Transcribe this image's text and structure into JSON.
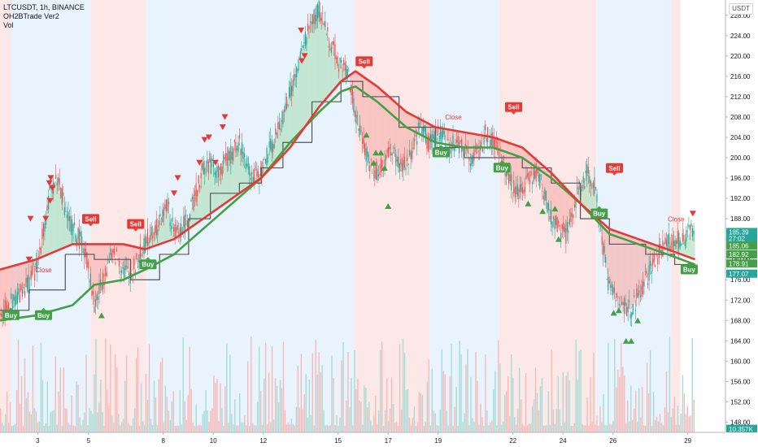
{
  "legend": {
    "symbol": "LTCUSDT, 1h, BINANCE",
    "indicator": "OH2BTrade Ver2",
    "volume": "Vol"
  },
  "currency": "USDT",
  "colors": {
    "buy": "#43a047",
    "sell": "#e53935",
    "up": "#26a69a",
    "down": "#ef5350",
    "band_red": "#fde8e8",
    "band_blue": "#e8f3fd",
    "ma_red": "#e53935",
    "ma_green": "#43a047",
    "stair": "#555555"
  },
  "chart_data": {
    "type": "candlestick",
    "ylim": [
      146,
      231
    ],
    "xlim": [
      0,
      100
    ],
    "y_ticks": [
      "228.00",
      "224.00",
      "220.00",
      "216.00",
      "212.00",
      "208.00",
      "204.00",
      "200.00",
      "196.00",
      "192.00",
      "188.00",
      "184.00",
      "180.00",
      "176.00",
      "172.00",
      "168.00",
      "164.00",
      "160.00",
      "156.00",
      "152.00",
      "148.00"
    ],
    "x_ticks": [
      {
        "label": "3",
        "x": 5.2
      },
      {
        "label": "5",
        "x": 12.2
      },
      {
        "label": "8",
        "x": 22.5
      },
      {
        "label": "10",
        "x": 29.4
      },
      {
        "label": "12",
        "x": 36.3
      },
      {
        "label": "15",
        "x": 46.6
      },
      {
        "label": "17",
        "x": 53.5
      },
      {
        "label": "19",
        "x": 60.4
      },
      {
        "label": "22",
        "x": 70.7
      },
      {
        "label": "24",
        "x": 77.6
      },
      {
        "label": "26",
        "x": 84.5
      },
      {
        "label": "29",
        "x": 94.8
      }
    ],
    "bands": [
      {
        "from": 0,
        "to": 1.5,
        "color": "red"
      },
      {
        "from": 1.5,
        "to": 12.5,
        "color": "blue"
      },
      {
        "from": 12.5,
        "to": 20.2,
        "color": "red"
      },
      {
        "from": 20.2,
        "to": 48.8,
        "color": "blue"
      },
      {
        "from": 48.8,
        "to": 59.2,
        "color": "red"
      },
      {
        "from": 59.2,
        "to": 68.8,
        "color": "blue"
      },
      {
        "from": 68.8,
        "to": 82.2,
        "color": "red"
      },
      {
        "from": 82.2,
        "to": 92.5,
        "color": "blue"
      },
      {
        "from": 92.5,
        "to": 93.8,
        "color": "red"
      }
    ],
    "price_path": [
      [
        0,
        169
      ],
      [
        2,
        172
      ],
      [
        4,
        176
      ],
      [
        5,
        178
      ],
      [
        6,
        186
      ],
      [
        7,
        194
      ],
      [
        8,
        196
      ],
      [
        9,
        190
      ],
      [
        10,
        186
      ],
      [
        11,
        184
      ],
      [
        12,
        180
      ],
      [
        13,
        171
      ],
      [
        14,
        175
      ],
      [
        15,
        180
      ],
      [
        16,
        181
      ],
      [
        17,
        178
      ],
      [
        18,
        177
      ],
      [
        19,
        180
      ],
      [
        20,
        183
      ],
      [
        21,
        186
      ],
      [
        22,
        187
      ],
      [
        23,
        191
      ],
      [
        24,
        185
      ],
      [
        25,
        186
      ],
      [
        26,
        188
      ],
      [
        27,
        193
      ],
      [
        28,
        198
      ],
      [
        29,
        199
      ],
      [
        30,
        197
      ],
      [
        31,
        199
      ],
      [
        32,
        201
      ],
      [
        33,
        203
      ],
      [
        34,
        199
      ],
      [
        35,
        196
      ],
      [
        36,
        197
      ],
      [
        37,
        201
      ],
      [
        38,
        204
      ],
      [
        39,
        208
      ],
      [
        40,
        213
      ],
      [
        41,
        217
      ],
      [
        42,
        223
      ],
      [
        43,
        227
      ],
      [
        44,
        229
      ],
      [
        45,
        225
      ],
      [
        46,
        221
      ],
      [
        47,
        218
      ],
      [
        48,
        217
      ],
      [
        49,
        208
      ],
      [
        50,
        203
      ],
      [
        51,
        199
      ],
      [
        52,
        197
      ],
      [
        53,
        199
      ],
      [
        54,
        202
      ],
      [
        55,
        198
      ],
      [
        56,
        199
      ],
      [
        57,
        201
      ],
      [
        58,
        207
      ],
      [
        59,
        203
      ],
      [
        60,
        204
      ],
      [
        61,
        205
      ],
      [
        62,
        202
      ],
      [
        63,
        203
      ],
      [
        64,
        202
      ],
      [
        65,
        200
      ],
      [
        66,
        201
      ],
      [
        67,
        205
      ],
      [
        68,
        203
      ],
      [
        69,
        200
      ],
      [
        70,
        197
      ],
      [
        71,
        194
      ],
      [
        72,
        193
      ],
      [
        73,
        196
      ],
      [
        74,
        197
      ],
      [
        75,
        193
      ],
      [
        76,
        188
      ],
      [
        77,
        186
      ],
      [
        78,
        185
      ],
      [
        79,
        190
      ],
      [
        80,
        194
      ],
      [
        81,
        197
      ],
      [
        82,
        194
      ],
      [
        83,
        184
      ],
      [
        84,
        174
      ],
      [
        85,
        173
      ],
      [
        86,
        171
      ],
      [
        87,
        170
      ],
      [
        88,
        173
      ],
      [
        89,
        176
      ],
      [
        90,
        179
      ],
      [
        91,
        182
      ],
      [
        92,
        183
      ],
      [
        93,
        184
      ],
      [
        94,
        183
      ],
      [
        95,
        185
      ],
      [
        95.8,
        186
      ]
    ],
    "ma_red": [
      [
        0,
        178
      ],
      [
        5,
        180
      ],
      [
        10,
        183
      ],
      [
        13,
        183
      ],
      [
        17,
        183
      ],
      [
        20,
        182
      ],
      [
        24,
        184
      ],
      [
        28,
        188
      ],
      [
        32,
        192
      ],
      [
        36,
        196
      ],
      [
        40,
        202
      ],
      [
        44,
        210
      ],
      [
        47,
        215
      ],
      [
        49,
        217
      ],
      [
        52,
        214
      ],
      [
        56,
        209
      ],
      [
        60,
        206
      ],
      [
        64,
        205
      ],
      [
        68,
        204
      ],
      [
        72,
        202
      ],
      [
        76,
        197
      ],
      [
        80,
        191
      ],
      [
        84,
        186
      ],
      [
        88,
        184
      ],
      [
        92,
        182
      ],
      [
        95.8,
        180
      ]
    ],
    "ma_green": [
      [
        0,
        168
      ],
      [
        5,
        169
      ],
      [
        10,
        171
      ],
      [
        13,
        175
      ],
      [
        17,
        176
      ],
      [
        20,
        178
      ],
      [
        24,
        181
      ],
      [
        28,
        186
      ],
      [
        32,
        191
      ],
      [
        36,
        196
      ],
      [
        40,
        203
      ],
      [
        44,
        209
      ],
      [
        47,
        213
      ],
      [
        49,
        214
      ],
      [
        52,
        211
      ],
      [
        56,
        206
      ],
      [
        60,
        203
      ],
      [
        64,
        202
      ],
      [
        68,
        202
      ],
      [
        72,
        200
      ],
      [
        76,
        196
      ],
      [
        80,
        191
      ],
      [
        84,
        185
      ],
      [
        88,
        183
      ],
      [
        92,
        181
      ],
      [
        95.8,
        179
      ]
    ],
    "stair": [
      [
        0,
        170
      ],
      [
        4,
        170
      ],
      [
        4,
        174
      ],
      [
        9,
        174
      ],
      [
        9,
        181
      ],
      [
        13,
        181
      ],
      [
        13,
        180
      ],
      [
        18,
        180
      ],
      [
        18,
        176
      ],
      [
        22,
        176
      ],
      [
        22,
        181
      ],
      [
        26,
        181
      ],
      [
        26,
        188
      ],
      [
        29,
        188
      ],
      [
        29,
        193
      ],
      [
        33,
        193
      ],
      [
        33,
        195
      ],
      [
        36,
        195
      ],
      [
        36,
        198
      ],
      [
        39,
        198
      ],
      [
        39,
        203
      ],
      [
        43,
        203
      ],
      [
        43,
        211
      ],
      [
        47,
        211
      ],
      [
        47,
        215
      ],
      [
        50,
        215
      ],
      [
        50,
        212
      ],
      [
        55,
        212
      ],
      [
        55,
        206
      ],
      [
        60,
        206
      ],
      [
        60,
        202
      ],
      [
        64,
        202
      ],
      [
        64,
        200
      ],
      [
        68,
        200
      ],
      [
        68,
        200
      ],
      [
        72,
        200
      ],
      [
        72,
        198
      ],
      [
        76,
        198
      ],
      [
        76,
        195
      ],
      [
        80,
        195
      ],
      [
        80,
        188
      ],
      [
        84,
        188
      ],
      [
        84,
        183
      ],
      [
        89,
        183
      ],
      [
        89,
        181
      ],
      [
        93,
        181
      ],
      [
        93,
        179
      ],
      [
        95.8,
        179
      ]
    ],
    "buy_labels": [
      {
        "text": "Buy",
        "x": 1.5,
        "y": 170
      },
      {
        "text": "Buy",
        "x": 6.0,
        "y": 170
      },
      {
        "text": "Buy",
        "x": 20.4,
        "y": 180
      },
      {
        "text": "Buy",
        "x": 60.8,
        "y": 202
      },
      {
        "text": "Buy",
        "x": 69.2,
        "y": 199
      },
      {
        "text": "Buy",
        "x": 82.6,
        "y": 190
      },
      {
        "text": "Buy",
        "x": 95.0,
        "y": 179
      }
    ],
    "sell_labels": [
      {
        "text": "Sell",
        "x": 12.5,
        "y": 187
      },
      {
        "text": "Sell",
        "x": 18.7,
        "y": 186
      },
      {
        "text": "Sell",
        "x": 50.2,
        "y": 218
      },
      {
        "text": "Sell",
        "x": 70.8,
        "y": 209
      },
      {
        "text": "Sell",
        "x": 84.7,
        "y": 197
      }
    ],
    "close_labels": [
      {
        "text": "Close",
        "x": 6.0,
        "y": 177.5
      },
      {
        "text": "Close",
        "x": 62.5,
        "y": 207.5
      },
      {
        "text": "Close",
        "x": 93.2,
        "y": 187.5
      }
    ],
    "x_marks": [
      {
        "x": 5.8,
        "y": 175.5
      },
      {
        "x": 17.3,
        "y": 181
      },
      {
        "x": 50.0,
        "y": 213
      },
      {
        "x": 62.5,
        "y": 205
      },
      {
        "x": 93.2,
        "y": 185
      }
    ],
    "buy_triangles": [
      [
        14,
        169
      ],
      [
        50.5,
        204.5
      ],
      [
        51.5,
        199
      ],
      [
        51.8,
        201
      ],
      [
        52.5,
        201
      ],
      [
        53,
        198
      ],
      [
        53.5,
        190.5
      ],
      [
        72.8,
        191
      ],
      [
        74.8,
        189.5
      ],
      [
        76.5,
        190
      ],
      [
        77,
        184
      ],
      [
        84.6,
        169.5
      ],
      [
        85.3,
        170
      ],
      [
        86.3,
        164
      ],
      [
        87.0,
        164
      ],
      [
        87.9,
        168
      ]
    ],
    "sell_triangles": [
      [
        4.2,
        188
      ],
      [
        4.0,
        180
      ],
      [
        6.3,
        188
      ],
      [
        7.0,
        196
      ],
      [
        6.8,
        195
      ],
      [
        6.9,
        191.5
      ],
      [
        7.2,
        194
      ],
      [
        24.5,
        196
      ],
      [
        24.0,
        193
      ],
      [
        27.5,
        199
      ],
      [
        28.2,
        203.5
      ],
      [
        28.8,
        204
      ],
      [
        29.7,
        199
      ],
      [
        30.7,
        206
      ],
      [
        31.0,
        208
      ],
      [
        41.5,
        225
      ],
      [
        41.6,
        219
      ],
      [
        42.0,
        220
      ],
      [
        95.5,
        189
      ]
    ],
    "price_tags": [
      {
        "text": "185.39",
        "y": 185.39,
        "color": "#26a69a"
      },
      {
        "text": "27:02",
        "y": 184.1,
        "color": "#26a69a"
      },
      {
        "text": "185.06",
        "y": 182.7,
        "color": "#43a047"
      },
      {
        "text": "182.92",
        "y": 181.0,
        "color": "#43a047"
      },
      {
        "text": "178.91",
        "y": 179.2,
        "color": "#43a047"
      },
      {
        "text": "177.07",
        "y": 177.2,
        "color": "#26a69a"
      },
      {
        "text": "10.357K",
        "y": 146.7,
        "color": "#26a69a"
      }
    ]
  }
}
